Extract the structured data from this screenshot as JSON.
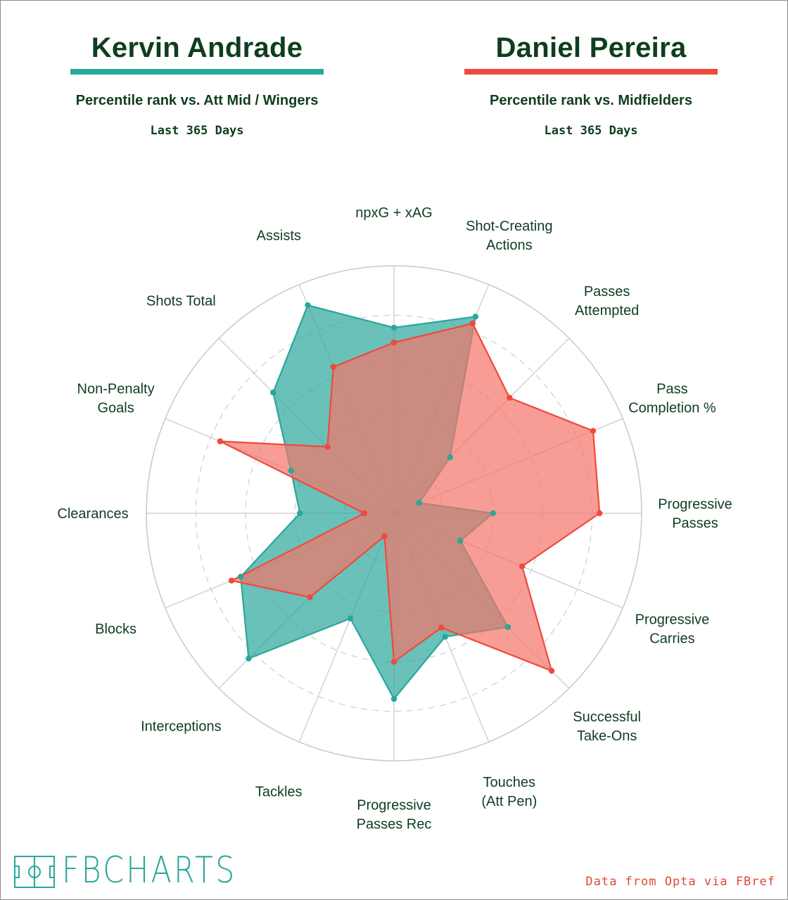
{
  "header": {
    "left": {
      "name": "Kervin Andrade",
      "subtitle": "Percentile rank vs. Att Mid / Wingers",
      "period": "Last 365 Days",
      "color": "#2aa79b"
    },
    "right": {
      "name": "Daniel Pereira",
      "subtitle": "Percentile rank vs. Midfielders",
      "period": "Last 365 Days",
      "color": "#f0493e"
    }
  },
  "footer": {
    "logo_text": "FBCHARTS",
    "source": "Data from Opta via FBref"
  },
  "chart_data": {
    "type": "radar",
    "range": [
      0,
      100
    ],
    "grid": true,
    "axes": [
      "npxG + xAG",
      "Shot-Creating Actions",
      "Passes Attempted",
      "Pass Completion %",
      "Progressive Passes",
      "Progressive Carries",
      "Successful Take-Ons",
      "Touches (Att Pen)",
      "Progressive Passes Rec",
      "Tackles",
      "Interceptions",
      "Blocks",
      "Clearances",
      "Non-Penalty Goals",
      "Shots Total",
      "Assists"
    ],
    "series": [
      {
        "name": "Kervin Andrade",
        "color": "#2aa79b",
        "fill": "#2aa79b",
        "values": [
          75,
          86,
          32,
          11,
          40,
          29,
          65,
          54,
          75,
          46,
          83,
          67,
          38,
          45,
          69,
          91
        ]
      },
      {
        "name": "Daniel Pereira",
        "color": "#f0493e",
        "fill": "#f47468",
        "values": [
          69,
          83,
          66,
          87,
          83,
          56,
          90,
          50,
          60,
          10,
          48,
          71,
          12,
          76,
          38,
          64
        ]
      }
    ]
  }
}
